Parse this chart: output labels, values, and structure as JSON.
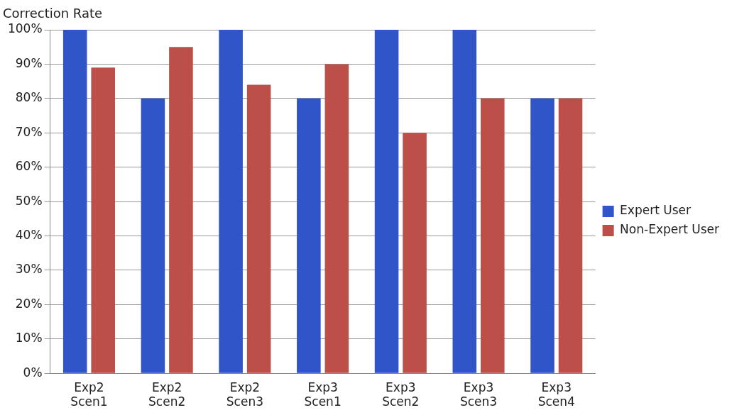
{
  "chart_data": {
    "type": "bar",
    "ylabel": "Correction Rate",
    "categories": [
      "Exp2 Scen1",
      "Exp2 Scen2",
      "Exp2 Scen3",
      "Exp3 Scen1",
      "Exp3 Scen2",
      "Exp3 Scen3",
      "Exp3 Scen4"
    ],
    "series": [
      {
        "name": "Expert User",
        "color": "#2f55c8",
        "values": [
          100,
          80,
          100,
          80,
          100,
          100,
          80
        ]
      },
      {
        "name": "Non-Expert User",
        "color": "#bd4f4b",
        "values": [
          89,
          95,
          84,
          90,
          70,
          80,
          80
        ]
      }
    ],
    "ylim": [
      0,
      100
    ],
    "yticks": [
      {
        "value": 0,
        "label": "0%"
      },
      {
        "value": 10,
        "label": "10%"
      },
      {
        "value": 20,
        "label": "20%"
      },
      {
        "value": 30,
        "label": "30%"
      },
      {
        "value": 40,
        "label": "40%"
      },
      {
        "value": 50,
        "label": "50%"
      },
      {
        "value": 60,
        "label": "60%"
      },
      {
        "value": 70,
        "label": "70%"
      },
      {
        "value": 80,
        "label": "80%"
      },
      {
        "value": 90,
        "label": "90%"
      },
      {
        "value": 100,
        "label": "100%"
      }
    ],
    "grid": "y",
    "legend": "right"
  }
}
